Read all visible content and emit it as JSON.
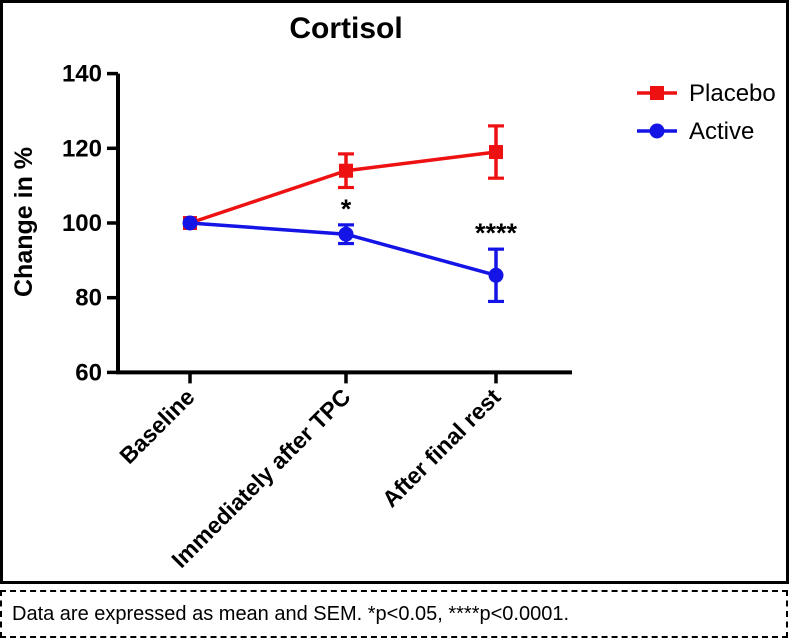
{
  "chart_data": {
    "type": "line",
    "title": "Cortisol",
    "ylabel": "Change in %",
    "xlabel": "",
    "categories": [
      "Baseline",
      "Immediately after TPC",
      "After final rest"
    ],
    "series": [
      {
        "name": "Placebo",
        "color": "#ee1111",
        "marker": "square",
        "values": [
          100,
          114,
          119
        ],
        "sem": [
          0,
          4.5,
          7
        ]
      },
      {
        "name": "Active",
        "color": "#1414e6",
        "marker": "circle",
        "values": [
          100,
          97,
          86
        ],
        "sem": [
          0,
          2.5,
          7
        ]
      }
    ],
    "annotations": [
      {
        "text": "*",
        "category_index": 1,
        "series": "Active"
      },
      {
        "text": "****",
        "category_index": 2,
        "series": "Active"
      }
    ],
    "ylim": [
      60,
      140
    ],
    "yticks": [
      60,
      80,
      100,
      120,
      140
    ],
    "grid": false,
    "legend_position": "top-right",
    "axis_color": "#000000",
    "text_color": "#000000"
  },
  "caption": {
    "text": "Data are expressed as mean and SEM. *p<0.05, ****p<0.0001."
  }
}
